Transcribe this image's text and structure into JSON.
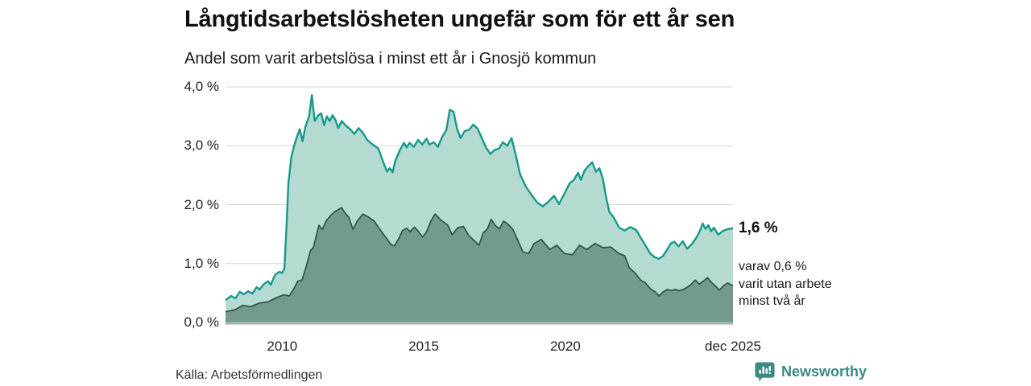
{
  "header": {
    "title": "Långtidsarbetslösheten ungefär som för ett år sen",
    "subtitle": "Andel som varit arbetslösa i minst ett år i Gnosjö kommun"
  },
  "chart_data": {
    "type": "area",
    "title": "Långtidsarbetslösheten ungefär som för ett år sen",
    "subtitle": "Andel som varit arbetslösa i minst ett år i Gnosjö kommun",
    "x_unit": "year (decimal, monthly data from 2008 to dec 2025)",
    "y_unit": "percent",
    "xlim": [
      2008.0,
      2025.92
    ],
    "ylim": [
      0,
      4
    ],
    "grid": true,
    "y_ticks": [
      {
        "value": 4,
        "label": "4,0 %"
      },
      {
        "value": 3,
        "label": "3,0 %"
      },
      {
        "value": 2,
        "label": "2,0 %"
      },
      {
        "value": 1,
        "label": "1,0 %"
      },
      {
        "value": 0,
        "label": "0,0 %"
      }
    ],
    "x_ticks": [
      {
        "value": 2010,
        "label": "2010"
      },
      {
        "value": 2015,
        "label": "2015"
      },
      {
        "value": 2020,
        "label": "2020"
      },
      {
        "value": 2025.92,
        "label": "dec 2025"
      }
    ],
    "series": [
      {
        "name": "Andel arbetslösa minst ett år",
        "line_color": "#17998a",
        "fill_color": "#aed7ce",
        "line_width": 2.4,
        "end_value": "1,6 %",
        "points": [
          [
            2008.0,
            0.38
          ],
          [
            2008.2,
            0.45
          ],
          [
            2008.35,
            0.41
          ],
          [
            2008.5,
            0.52
          ],
          [
            2008.65,
            0.48
          ],
          [
            2008.8,
            0.53
          ],
          [
            2008.95,
            0.49
          ],
          [
            2009.1,
            0.6
          ],
          [
            2009.2,
            0.56
          ],
          [
            2009.35,
            0.65
          ],
          [
            2009.5,
            0.7
          ],
          [
            2009.6,
            0.64
          ],
          [
            2009.75,
            0.81
          ],
          [
            2009.9,
            0.86
          ],
          [
            2010.0,
            0.84
          ],
          [
            2010.08,
            0.92
          ],
          [
            2010.15,
            1.6
          ],
          [
            2010.22,
            2.35
          ],
          [
            2010.32,
            2.8
          ],
          [
            2010.42,
            3.0
          ],
          [
            2010.52,
            3.15
          ],
          [
            2010.62,
            3.28
          ],
          [
            2010.72,
            3.08
          ],
          [
            2010.82,
            3.32
          ],
          [
            2010.95,
            3.5
          ],
          [
            2011.05,
            3.86
          ],
          [
            2011.15,
            3.42
          ],
          [
            2011.28,
            3.52
          ],
          [
            2011.38,
            3.55
          ],
          [
            2011.48,
            3.35
          ],
          [
            2011.58,
            3.5
          ],
          [
            2011.68,
            3.42
          ],
          [
            2011.78,
            3.52
          ],
          [
            2011.88,
            3.44
          ],
          [
            2011.98,
            3.3
          ],
          [
            2012.1,
            3.42
          ],
          [
            2012.25,
            3.34
          ],
          [
            2012.4,
            3.28
          ],
          [
            2012.55,
            3.2
          ],
          [
            2012.7,
            3.3
          ],
          [
            2012.85,
            3.22
          ],
          [
            2013.0,
            3.1
          ],
          [
            2013.2,
            3.02
          ],
          [
            2013.4,
            2.95
          ],
          [
            2013.55,
            2.75
          ],
          [
            2013.7,
            2.56
          ],
          [
            2013.8,
            2.62
          ],
          [
            2013.9,
            2.55
          ],
          [
            2014.0,
            2.75
          ],
          [
            2014.15,
            2.92
          ],
          [
            2014.3,
            3.05
          ],
          [
            2014.4,
            2.97
          ],
          [
            2014.5,
            3.05
          ],
          [
            2014.65,
            2.98
          ],
          [
            2014.8,
            3.1
          ],
          [
            2014.95,
            3.02
          ],
          [
            2015.1,
            3.12
          ],
          [
            2015.2,
            3.02
          ],
          [
            2015.35,
            3.06
          ],
          [
            2015.5,
            2.98
          ],
          [
            2015.65,
            3.15
          ],
          [
            2015.8,
            3.27
          ],
          [
            2015.92,
            3.61
          ],
          [
            2016.05,
            3.58
          ],
          [
            2016.18,
            3.28
          ],
          [
            2016.3,
            3.13
          ],
          [
            2016.45,
            3.25
          ],
          [
            2016.6,
            3.27
          ],
          [
            2016.75,
            3.36
          ],
          [
            2016.9,
            3.29
          ],
          [
            2017.05,
            3.13
          ],
          [
            2017.2,
            2.97
          ],
          [
            2017.35,
            2.86
          ],
          [
            2017.5,
            2.93
          ],
          [
            2017.65,
            2.95
          ],
          [
            2017.8,
            3.06
          ],
          [
            2017.95,
            3.0
          ],
          [
            2018.1,
            3.13
          ],
          [
            2018.25,
            2.84
          ],
          [
            2018.4,
            2.52
          ],
          [
            2018.6,
            2.31
          ],
          [
            2018.8,
            2.17
          ],
          [
            2019.0,
            2.04
          ],
          [
            2019.2,
            1.97
          ],
          [
            2019.4,
            2.05
          ],
          [
            2019.6,
            2.15
          ],
          [
            2019.78,
            2.01
          ],
          [
            2019.95,
            2.17
          ],
          [
            2020.15,
            2.36
          ],
          [
            2020.3,
            2.42
          ],
          [
            2020.45,
            2.54
          ],
          [
            2020.55,
            2.42
          ],
          [
            2020.68,
            2.58
          ],
          [
            2020.8,
            2.65
          ],
          [
            2020.95,
            2.72
          ],
          [
            2021.08,
            2.56
          ],
          [
            2021.2,
            2.62
          ],
          [
            2021.32,
            2.45
          ],
          [
            2021.45,
            2.1
          ],
          [
            2021.55,
            1.88
          ],
          [
            2021.7,
            1.79
          ],
          [
            2021.9,
            1.61
          ],
          [
            2022.1,
            1.56
          ],
          [
            2022.3,
            1.62
          ],
          [
            2022.5,
            1.57
          ],
          [
            2022.65,
            1.45
          ],
          [
            2022.85,
            1.29
          ],
          [
            2023.0,
            1.17
          ],
          [
            2023.15,
            1.11
          ],
          [
            2023.3,
            1.08
          ],
          [
            2023.45,
            1.13
          ],
          [
            2023.6,
            1.24
          ],
          [
            2023.72,
            1.34
          ],
          [
            2023.85,
            1.37
          ],
          [
            2024.0,
            1.29
          ],
          [
            2024.15,
            1.38
          ],
          [
            2024.3,
            1.25
          ],
          [
            2024.45,
            1.32
          ],
          [
            2024.6,
            1.42
          ],
          [
            2024.72,
            1.52
          ],
          [
            2024.85,
            1.68
          ],
          [
            2024.95,
            1.59
          ],
          [
            2025.05,
            1.65
          ],
          [
            2025.15,
            1.55
          ],
          [
            2025.25,
            1.61
          ],
          [
            2025.4,
            1.49
          ],
          [
            2025.55,
            1.55
          ],
          [
            2025.7,
            1.58
          ],
          [
            2025.92,
            1.6
          ]
        ]
      },
      {
        "name": "Andel arbetslösa minst två år",
        "line_color": "#30504a",
        "fill_color": "#6f958a",
        "line_width": 1.7,
        "end_value": "0,6 %",
        "points": [
          [
            2008.0,
            0.18
          ],
          [
            2008.35,
            0.22
          ],
          [
            2008.6,
            0.29
          ],
          [
            2008.9,
            0.27
          ],
          [
            2009.2,
            0.33
          ],
          [
            2009.5,
            0.35
          ],
          [
            2009.8,
            0.42
          ],
          [
            2010.05,
            0.47
          ],
          [
            2010.25,
            0.45
          ],
          [
            2010.4,
            0.56
          ],
          [
            2010.55,
            0.7
          ],
          [
            2010.7,
            0.72
          ],
          [
            2010.85,
            0.95
          ],
          [
            2011.0,
            1.22
          ],
          [
            2011.1,
            1.27
          ],
          [
            2011.3,
            1.65
          ],
          [
            2011.42,
            1.58
          ],
          [
            2011.55,
            1.72
          ],
          [
            2011.7,
            1.81
          ],
          [
            2011.85,
            1.88
          ],
          [
            2012.0,
            1.92
          ],
          [
            2012.1,
            1.95
          ],
          [
            2012.22,
            1.86
          ],
          [
            2012.35,
            1.79
          ],
          [
            2012.5,
            1.58
          ],
          [
            2012.65,
            1.72
          ],
          [
            2012.85,
            1.84
          ],
          [
            2013.05,
            1.79
          ],
          [
            2013.25,
            1.72
          ],
          [
            2013.45,
            1.58
          ],
          [
            2013.65,
            1.45
          ],
          [
            2013.85,
            1.32
          ],
          [
            2013.97,
            1.3
          ],
          [
            2014.1,
            1.41
          ],
          [
            2014.25,
            1.56
          ],
          [
            2014.4,
            1.6
          ],
          [
            2014.52,
            1.54
          ],
          [
            2014.67,
            1.62
          ],
          [
            2014.82,
            1.54
          ],
          [
            2014.96,
            1.45
          ],
          [
            2015.1,
            1.54
          ],
          [
            2015.25,
            1.72
          ],
          [
            2015.4,
            1.84
          ],
          [
            2015.6,
            1.74
          ],
          [
            2015.85,
            1.65
          ],
          [
            2016.0,
            1.49
          ],
          [
            2016.2,
            1.61
          ],
          [
            2016.4,
            1.63
          ],
          [
            2016.6,
            1.47
          ],
          [
            2016.8,
            1.38
          ],
          [
            2016.95,
            1.31
          ],
          [
            2017.1,
            1.52
          ],
          [
            2017.25,
            1.59
          ],
          [
            2017.38,
            1.75
          ],
          [
            2017.52,
            1.65
          ],
          [
            2017.67,
            1.59
          ],
          [
            2017.82,
            1.72
          ],
          [
            2017.97,
            1.67
          ],
          [
            2018.15,
            1.58
          ],
          [
            2018.3,
            1.42
          ],
          [
            2018.5,
            1.2
          ],
          [
            2018.7,
            1.17
          ],
          [
            2018.9,
            1.34
          ],
          [
            2019.15,
            1.41
          ],
          [
            2019.45,
            1.24
          ],
          [
            2019.7,
            1.31
          ],
          [
            2019.97,
            1.17
          ],
          [
            2020.25,
            1.15
          ],
          [
            2020.5,
            1.31
          ],
          [
            2020.76,
            1.24
          ],
          [
            2021.05,
            1.34
          ],
          [
            2021.33,
            1.27
          ],
          [
            2021.6,
            1.28
          ],
          [
            2021.9,
            1.17
          ],
          [
            2022.1,
            1.13
          ],
          [
            2022.26,
            0.93
          ],
          [
            2022.46,
            0.84
          ],
          [
            2022.66,
            0.72
          ],
          [
            2022.83,
            0.67
          ],
          [
            2023.03,
            0.56
          ],
          [
            2023.17,
            0.52
          ],
          [
            2023.31,
            0.45
          ],
          [
            2023.46,
            0.52
          ],
          [
            2023.6,
            0.56
          ],
          [
            2023.74,
            0.54
          ],
          [
            2023.88,
            0.56
          ],
          [
            2024.02,
            0.54
          ],
          [
            2024.16,
            0.56
          ],
          [
            2024.31,
            0.6
          ],
          [
            2024.45,
            0.65
          ],
          [
            2024.59,
            0.72
          ],
          [
            2024.73,
            0.65
          ],
          [
            2024.87,
            0.7
          ],
          [
            2025.02,
            0.76
          ],
          [
            2025.16,
            0.68
          ],
          [
            2025.3,
            0.62
          ],
          [
            2025.44,
            0.55
          ],
          [
            2025.58,
            0.62
          ],
          [
            2025.73,
            0.67
          ],
          [
            2025.92,
            0.62
          ]
        ]
      }
    ],
    "annotations": {
      "end_label": "1,6 %",
      "sub_label_lines": [
        "varav 0,6 %",
        "varit utan arbete",
        "minst två år"
      ]
    },
    "legend_position": "right-annotations",
    "grid_color": "#d6d6d6",
    "zero_line_color": "#a3a3a3"
  },
  "footer": {
    "source": "Källa: Arbetsförmedlingen",
    "brand": "Newsworthy"
  },
  "colors": {
    "accent_teal": "#17998a",
    "light_fill": "#aed7ce",
    "dark_fill": "#6f958a",
    "dark_line": "#30504a",
    "brand_teal": "#3a8a80",
    "background": "#ffffff"
  }
}
